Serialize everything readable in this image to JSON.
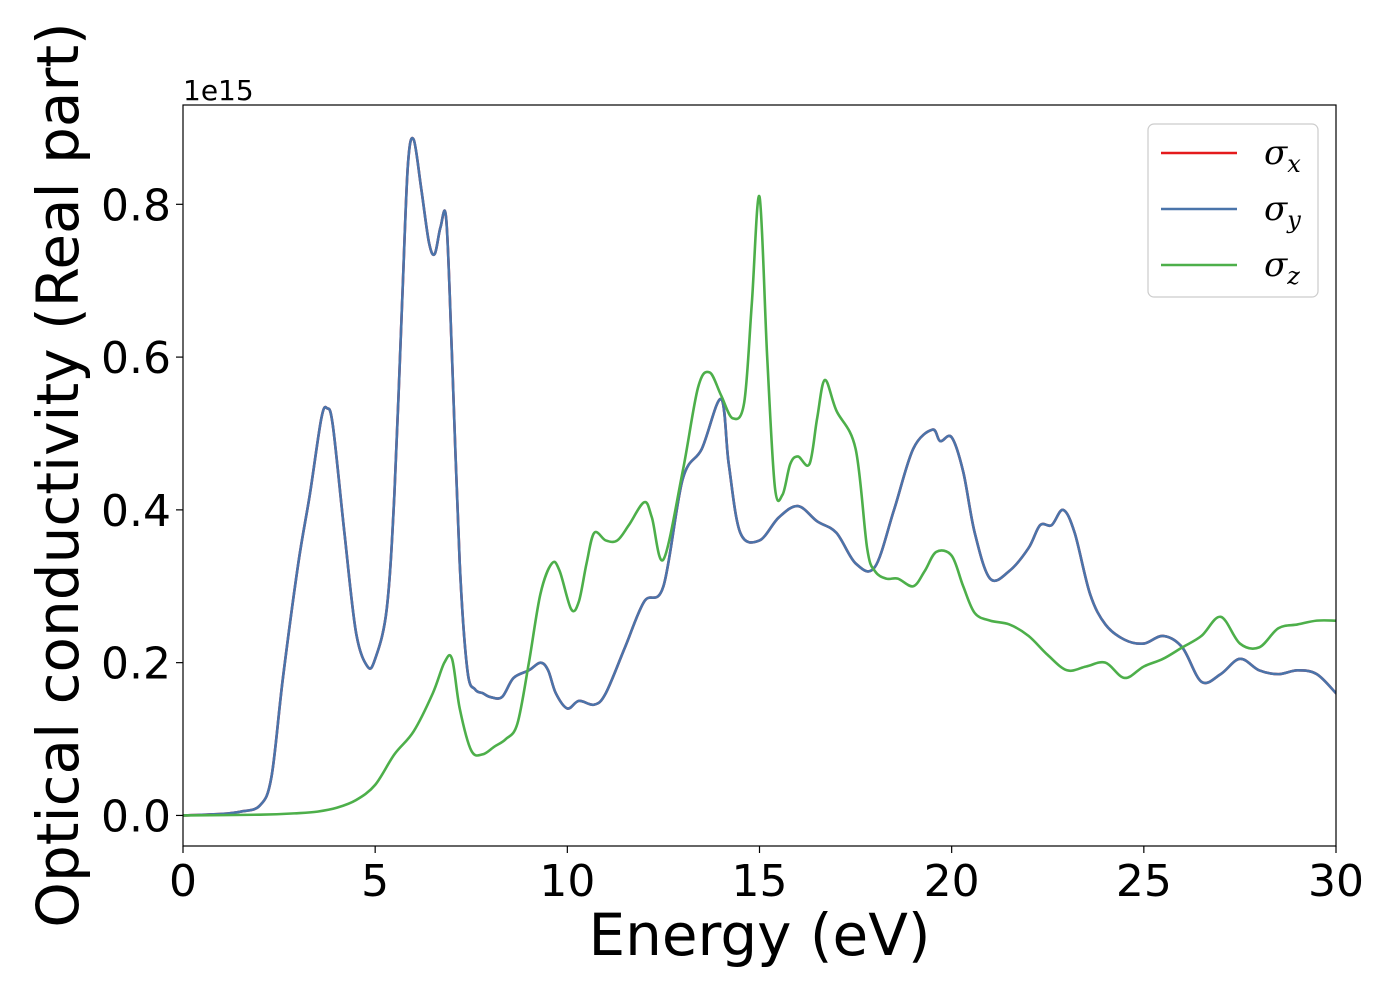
{
  "chart_data": {
    "type": "line",
    "xlabel": "Energy (eV)",
    "ylabel": "Optical conductivity (Real part)",
    "y_offset_label": "1e15",
    "xlim": [
      0,
      30
    ],
    "ylim": [
      -0.04,
      0.93
    ],
    "x_ticks": [
      0,
      5,
      10,
      15,
      20,
      25,
      30
    ],
    "x_tick_labels": [
      "0",
      "5",
      "10",
      "15",
      "20",
      "25",
      "30"
    ],
    "y_ticks": [
      0.0,
      0.2,
      0.4,
      0.6,
      0.8
    ],
    "y_tick_labels": [
      "0.0",
      "0.2",
      "0.4",
      "0.6",
      "0.8"
    ],
    "grid": false,
    "legend_position": "top-right",
    "series": [
      {
        "name": "σx",
        "symbol": "σ",
        "sub": "x",
        "color": "#e41a1c",
        "x": [
          0,
          1,
          1.5,
          2,
          2.3,
          2.6,
          3,
          3.3,
          3.6,
          3.75,
          3.9,
          4.2,
          4.5,
          4.8,
          5,
          5.3,
          5.5,
          5.7,
          5.85,
          6,
          6.2,
          6.4,
          6.55,
          6.7,
          6.85,
          7,
          7.2,
          7.4,
          7.6,
          7.8,
          8,
          8.3,
          8.6,
          9,
          9.3,
          9.5,
          9.7,
          10,
          10.3,
          10.7,
          11,
          11.5,
          12,
          12.5,
          13,
          13.5,
          14,
          14.2,
          14.5,
          15,
          15.5,
          16,
          16.5,
          17,
          17.5,
          18,
          18.5,
          19,
          19.5,
          19.7,
          20,
          20.3,
          20.6,
          21,
          21.5,
          22,
          22.3,
          22.6,
          22.9,
          23.2,
          23.6,
          24,
          24.5,
          25,
          25.5,
          26,
          26.5,
          27,
          27.5,
          28,
          28.5,
          29,
          29.5,
          30
        ],
        "values": [
          0,
          0.002,
          0.005,
          0.013,
          0.05,
          0.18,
          0.33,
          0.42,
          0.52,
          0.533,
          0.51,
          0.37,
          0.24,
          0.195,
          0.205,
          0.27,
          0.42,
          0.67,
          0.85,
          0.885,
          0.82,
          0.75,
          0.735,
          0.77,
          0.78,
          0.6,
          0.33,
          0.19,
          0.165,
          0.16,
          0.155,
          0.155,
          0.18,
          0.19,
          0.2,
          0.19,
          0.16,
          0.14,
          0.15,
          0.145,
          0.16,
          0.22,
          0.28,
          0.3,
          0.44,
          0.48,
          0.545,
          0.46,
          0.37,
          0.36,
          0.39,
          0.405,
          0.385,
          0.37,
          0.33,
          0.325,
          0.4,
          0.48,
          0.505,
          0.49,
          0.495,
          0.45,
          0.37,
          0.31,
          0.32,
          0.35,
          0.38,
          0.38,
          0.4,
          0.37,
          0.29,
          0.25,
          0.23,
          0.225,
          0.235,
          0.22,
          0.175,
          0.185,
          0.205,
          0.19,
          0.185,
          0.19,
          0.185,
          0.16
        ]
      },
      {
        "name": "σy",
        "symbol": "σ",
        "sub": "y",
        "color": "#4a74aa",
        "x": [
          0,
          1,
          1.5,
          2,
          2.3,
          2.6,
          3,
          3.3,
          3.6,
          3.75,
          3.9,
          4.2,
          4.5,
          4.8,
          5,
          5.3,
          5.5,
          5.7,
          5.85,
          6,
          6.2,
          6.4,
          6.55,
          6.7,
          6.85,
          7,
          7.2,
          7.4,
          7.6,
          7.8,
          8,
          8.3,
          8.6,
          9,
          9.3,
          9.5,
          9.7,
          10,
          10.3,
          10.7,
          11,
          11.5,
          12,
          12.5,
          13,
          13.5,
          14,
          14.2,
          14.5,
          15,
          15.5,
          16,
          16.5,
          17,
          17.5,
          18,
          18.5,
          19,
          19.5,
          19.7,
          20,
          20.3,
          20.6,
          21,
          21.5,
          22,
          22.3,
          22.6,
          22.9,
          23.2,
          23.6,
          24,
          24.5,
          25,
          25.5,
          26,
          26.5,
          27,
          27.5,
          28,
          28.5,
          29,
          29.5,
          30
        ],
        "values": [
          0,
          0.002,
          0.005,
          0.013,
          0.05,
          0.18,
          0.33,
          0.42,
          0.52,
          0.533,
          0.51,
          0.37,
          0.24,
          0.195,
          0.205,
          0.27,
          0.42,
          0.67,
          0.85,
          0.885,
          0.82,
          0.75,
          0.735,
          0.77,
          0.78,
          0.6,
          0.33,
          0.19,
          0.165,
          0.16,
          0.155,
          0.155,
          0.18,
          0.19,
          0.2,
          0.19,
          0.16,
          0.14,
          0.15,
          0.145,
          0.16,
          0.22,
          0.28,
          0.3,
          0.44,
          0.48,
          0.545,
          0.46,
          0.37,
          0.36,
          0.39,
          0.405,
          0.385,
          0.37,
          0.33,
          0.325,
          0.4,
          0.48,
          0.505,
          0.49,
          0.495,
          0.45,
          0.37,
          0.31,
          0.32,
          0.35,
          0.38,
          0.38,
          0.4,
          0.37,
          0.29,
          0.25,
          0.23,
          0.225,
          0.235,
          0.22,
          0.175,
          0.185,
          0.205,
          0.19,
          0.185,
          0.19,
          0.185,
          0.16
        ]
      },
      {
        "name": "σz",
        "symbol": "σ",
        "sub": "z",
        "color": "#4daf4a",
        "x": [
          0,
          2,
          3,
          3.5,
          4,
          4.5,
          5,
          5.5,
          6,
          6.5,
          6.8,
          7,
          7.2,
          7.5,
          7.8,
          8.1,
          8.4,
          8.7,
          9,
          9.3,
          9.6,
          9.8,
          10.1,
          10.3,
          10.5,
          10.7,
          11,
          11.3,
          11.6,
          12,
          12.2,
          12.5,
          13,
          13.4,
          13.7,
          14,
          14.3,
          14.6,
          14.8,
          15,
          15.2,
          15.4,
          15.6,
          15.8,
          16,
          16.3,
          16.5,
          16.7,
          17,
          17.5,
          17.8,
          18,
          18.3,
          18.6,
          19,
          19.3,
          19.6,
          20,
          20.3,
          20.6,
          21,
          21.5,
          22,
          22.5,
          23,
          23.5,
          24,
          24.5,
          25,
          25.5,
          26,
          26.5,
          27,
          27.5,
          28,
          28.5,
          29,
          29.5,
          30
        ],
        "values": [
          0,
          0.001,
          0.003,
          0.005,
          0.01,
          0.02,
          0.04,
          0.08,
          0.11,
          0.16,
          0.2,
          0.205,
          0.14,
          0.085,
          0.08,
          0.09,
          0.1,
          0.12,
          0.2,
          0.29,
          0.33,
          0.32,
          0.27,
          0.28,
          0.33,
          0.37,
          0.36,
          0.36,
          0.38,
          0.41,
          0.39,
          0.335,
          0.45,
          0.56,
          0.58,
          0.55,
          0.52,
          0.54,
          0.67,
          0.81,
          0.6,
          0.43,
          0.42,
          0.46,
          0.47,
          0.46,
          0.52,
          0.57,
          0.53,
          0.48,
          0.35,
          0.32,
          0.31,
          0.31,
          0.3,
          0.32,
          0.345,
          0.34,
          0.3,
          0.265,
          0.255,
          0.25,
          0.235,
          0.21,
          0.19,
          0.195,
          0.2,
          0.18,
          0.195,
          0.205,
          0.22,
          0.235,
          0.26,
          0.225,
          0.22,
          0.245,
          0.25,
          0.255,
          0.255
        ]
      }
    ]
  }
}
